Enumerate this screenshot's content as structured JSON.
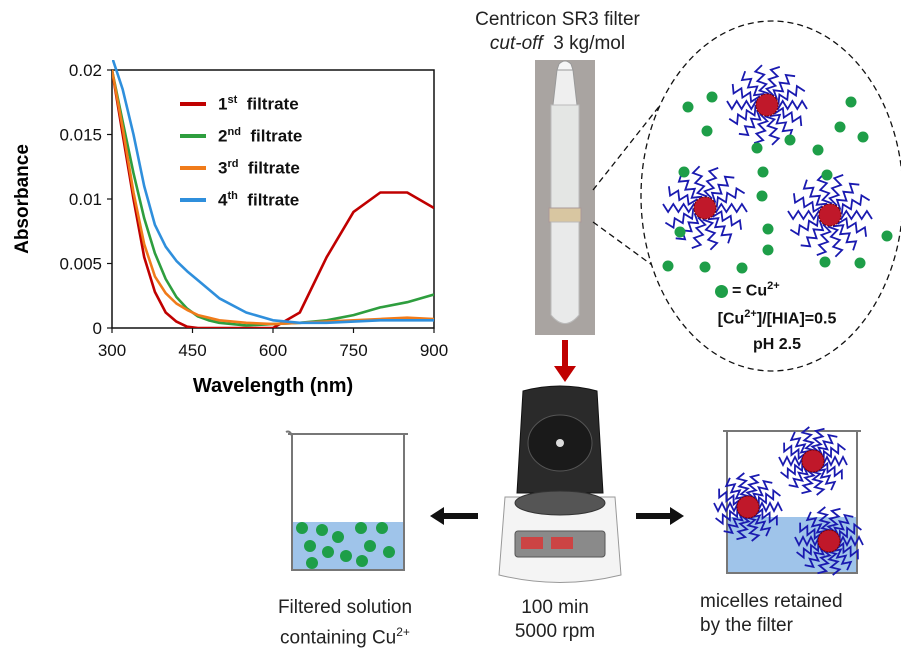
{
  "chart_data": {
    "type": "line",
    "xlabel": "Wavelength (nm)",
    "ylabel": "Absorbance",
    "xlim": [
      300,
      900
    ],
    "ylim": [
      0,
      0.02
    ],
    "xticks": [
      "300",
      "450",
      "600",
      "750",
      "900"
    ],
    "yticks": [
      "0",
      "0.005",
      "0.01",
      "0.015",
      "0.02"
    ],
    "grid": false,
    "legend_position": "top-right",
    "series": [
      {
        "name_num": "1",
        "name_sup": "st",
        "name_text": "filtrate",
        "color": "#c00000",
        "x": [
          300,
          320,
          340,
          360,
          380,
          400,
          420,
          440,
          460,
          480,
          500,
          550,
          600,
          650,
          700,
          750,
          800,
          850,
          900
        ],
        "y": [
          0.02,
          0.015,
          0.01,
          0.0055,
          0.0028,
          0.0012,
          0.0005,
          0.0001,
          0.0,
          0.0,
          0.0,
          0.0,
          0.0,
          0.0012,
          0.0055,
          0.009,
          0.0105,
          0.0105,
          0.0093
        ]
      },
      {
        "name_num": "2",
        "name_sup": "nd",
        "name_text": "filtrate",
        "color": "#2e9e3e",
        "x": [
          300,
          320,
          340,
          360,
          380,
          400,
          420,
          440,
          460,
          480,
          500,
          550,
          600,
          650,
          700,
          750,
          800,
          850,
          900
        ],
        "y": [
          0.02,
          0.016,
          0.012,
          0.0085,
          0.0058,
          0.0038,
          0.0024,
          0.0015,
          0.0009,
          0.0006,
          0.0004,
          0.0002,
          0.0003,
          0.0004,
          0.0006,
          0.001,
          0.0016,
          0.002,
          0.0026
        ]
      },
      {
        "name_num": "3",
        "name_sup": "rd",
        "name_text": "filtrate",
        "color": "#f07b1a",
        "x": [
          300,
          320,
          340,
          360,
          380,
          400,
          420,
          440,
          460,
          480,
          500,
          550,
          600,
          650,
          700,
          750,
          800,
          850,
          900
        ],
        "y": [
          0.02,
          0.0155,
          0.0105,
          0.0065,
          0.004,
          0.0027,
          0.0019,
          0.0014,
          0.001,
          0.0008,
          0.0006,
          0.0004,
          0.0003,
          0.0004,
          0.0005,
          0.0006,
          0.0007,
          0.0008,
          0.0007
        ]
      },
      {
        "name_num": "4",
        "name_sup": "th",
        "name_text": "filtrate",
        "color": "#2f8fdc",
        "x": [
          300,
          320,
          340,
          360,
          380,
          400,
          420,
          440,
          460,
          480,
          500,
          550,
          600,
          650,
          700,
          750,
          800,
          850,
          900
        ],
        "y": [
          0.021,
          0.0185,
          0.015,
          0.011,
          0.008,
          0.0063,
          0.0052,
          0.0044,
          0.0037,
          0.003,
          0.0023,
          0.0012,
          0.0006,
          0.0004,
          0.0004,
          0.0005,
          0.0006,
          0.0006,
          0.0006
        ]
      }
    ]
  },
  "filter": {
    "title": "Centricon SR3 filter",
    "cutoff_italic": "cut-off",
    "cutoff_value": "3 kg/mol"
  },
  "inset": {
    "legend_symbol": "= Cu",
    "legend_sup": "2+",
    "ratio_a": "[Cu",
    "ratio_sup": "2+",
    "ratio_b": "]/[HIA]=0.5",
    "ph": "pH 2.5",
    "dot_color": "#1e9e48",
    "micelle_core_color": "#c0182a",
    "chain_color": "#1a1ab0"
  },
  "captions": {
    "left_line1": "Filtered solution",
    "left_line2": "containing Cu",
    "left_sup": "2+",
    "centrifuge_line1": "100 min",
    "centrifuge_line2": "5000 rpm",
    "right_line1": "micelles retained",
    "right_line2": "by the filter"
  },
  "colors": {
    "arrow_down": "#c00000",
    "solution": "#9fc4ea"
  }
}
